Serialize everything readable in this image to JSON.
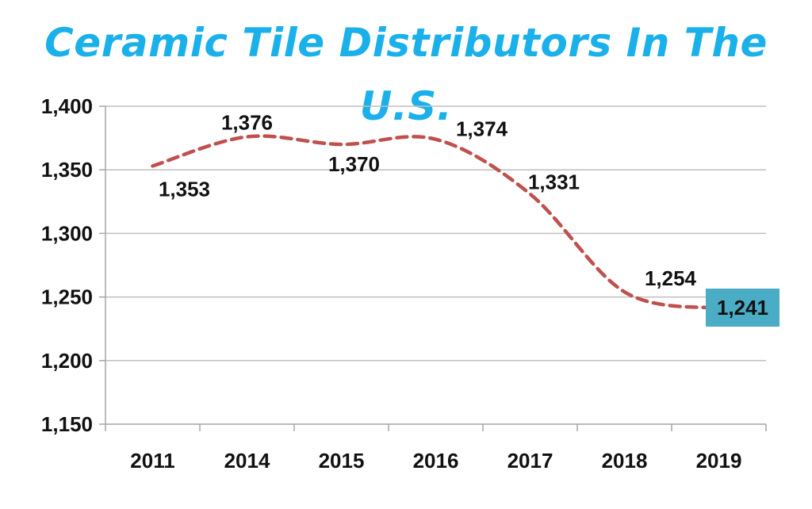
{
  "colors": {
    "title": "#1ab0ea",
    "series_line": "#c0504d",
    "gridline": "#bfbfbf",
    "axis": "#a6a6a6",
    "highlight_box": "#4bacc6"
  },
  "chart_data": {
    "type": "line",
    "title": "Ceramic Tile Distributors In The U.S.",
    "xlabel": "",
    "ylabel": "",
    "categories": [
      "2011",
      "2014",
      "2015",
      "2016",
      "2017",
      "2018",
      "2019"
    ],
    "series": [
      {
        "values": [
          1353,
          1376,
          1370,
          1374,
          1331,
          1254,
          1241
        ],
        "data_labels": [
          "1,353",
          "1,376",
          "1,370",
          "1,374",
          "1,331",
          "1,254",
          "1,241"
        ],
        "line_style": "dashed",
        "smooth": true
      }
    ],
    "ylim": [
      1150,
      1400
    ],
    "y_ticks": [
      1150,
      1200,
      1250,
      1300,
      1350,
      1400
    ],
    "y_tick_labels": [
      "1,150",
      "1,200",
      "1,250",
      "1,300",
      "1,350",
      "1,400"
    ],
    "grid": true,
    "legend": "none",
    "highlighted_label": "1,241"
  }
}
